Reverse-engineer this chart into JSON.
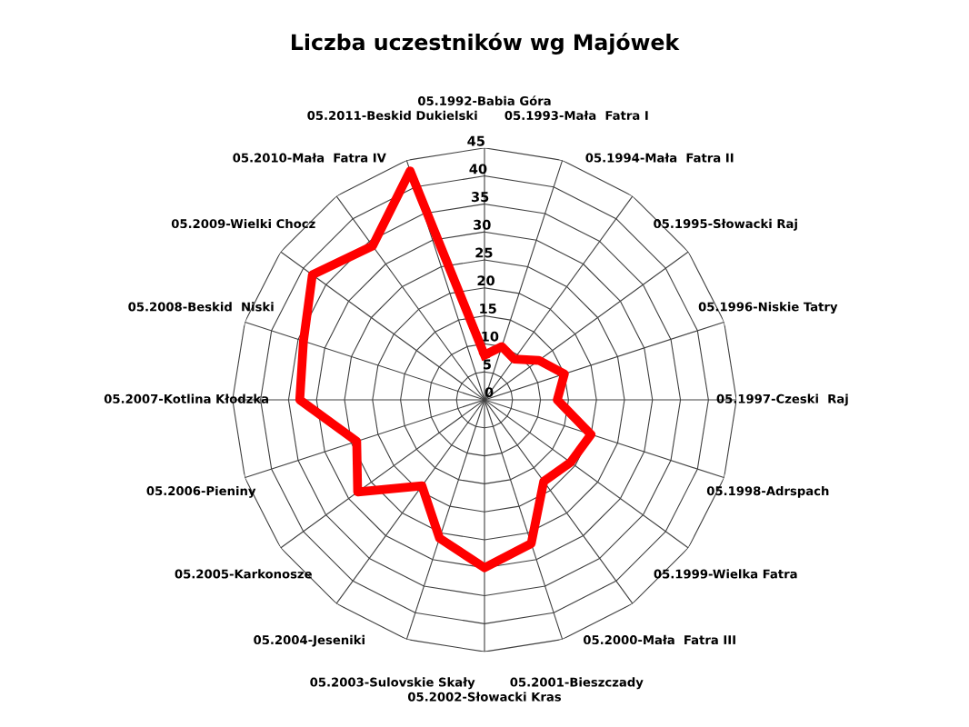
{
  "chart_data": {
    "type": "radar",
    "title": "Liczba uczestników wg Majówek",
    "categories": [
      "05.1992-Babia Góra",
      "05.1993-Mała  Fatra I",
      "05.1994-Mała  Fatra II",
      "05.1995-Słowacki Raj",
      "05.1996-Niskie Tatry",
      "05.1997-Czeski  Raj",
      "05.1998-Adrspach",
      "05.1999-Wielka Fatra",
      "05.2000-Mała  Fatra III",
      "05.2001-Bieszczady",
      "05.2002-Słowacki Kras",
      "05.2003-Sulovskie Skały",
      "05.2004-Jeseniki",
      "05.2005-Karkonosze",
      "05.2006-Pieniny",
      "05.2007-Kotlina Kłodzka",
      "05.2008-Beskid  Niski",
      "05.2009-Wielki Chocz",
      "05.2010-Mała  Fatra IV",
      "05.2011-Beskid Dukielski"
    ],
    "series": [
      {
        "color": "#ff0000",
        "values": [
          8,
          10,
          9,
          12,
          15,
          13,
          20,
          19,
          18,
          27,
          30,
          26,
          19,
          28,
          24,
          33,
          34,
          38,
          34,
          43
        ]
      }
    ],
    "ylim": [
      0,
      45
    ],
    "yticks": [
      0,
      5,
      10,
      15,
      20,
      25,
      30,
      35,
      40,
      45
    ],
    "grid": true,
    "marker": "none",
    "line_style": "solid"
  }
}
